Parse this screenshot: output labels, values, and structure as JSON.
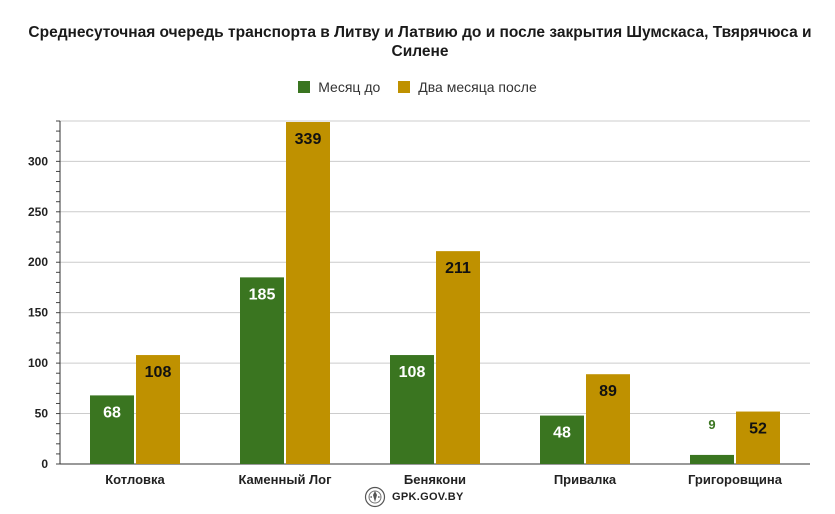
{
  "chart_data": {
    "type": "bar",
    "title": "Среднесуточная очередь транспорта в Литву и Латвию до и после закрытия Шумскаса, Твярячюса и Силене",
    "categories": [
      "Котловка",
      "Каменный Лог",
      "Бенякони",
      "Привалка",
      "Григоровщина"
    ],
    "series": [
      {
        "name": "Месяц до",
        "color": "#3a7520",
        "values": [
          68,
          185,
          108,
          48,
          9
        ]
      },
      {
        "name": "Два месяца после",
        "color": "#bf9100",
        "values": [
          108,
          339,
          211,
          89,
          52
        ]
      }
    ],
    "ylim": [
      0,
      340
    ],
    "yticks": [
      0,
      50,
      100,
      150,
      200,
      250,
      300
    ],
    "grid": true,
    "legend_position": "top"
  },
  "footer": {
    "site": "GPK.GOV.BY",
    "logo_icon": "emblem-icon"
  }
}
